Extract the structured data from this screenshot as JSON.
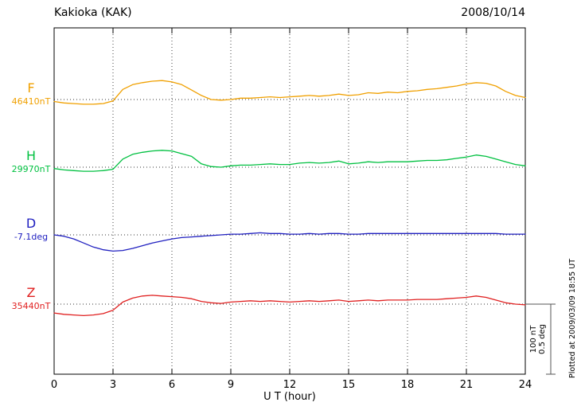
{
  "chart_data": {
    "type": "line",
    "title": "Kakioka (KAK)",
    "date": "2008/10/14",
    "xlabel": "U T (hour)",
    "xlim": [
      0,
      24
    ],
    "x_ticks": [
      0,
      3,
      6,
      9,
      12,
      15,
      18,
      21,
      24
    ],
    "x": [
      0,
      0.5,
      1,
      1.5,
      2,
      2.5,
      3,
      3.5,
      4,
      4.5,
      5,
      5.5,
      6,
      6.5,
      7,
      7.5,
      8,
      8.5,
      9,
      9.5,
      10,
      10.5,
      11,
      11.5,
      12,
      12.5,
      13,
      13.5,
      14,
      14.5,
      15,
      15.5,
      16,
      16.5,
      17,
      17.5,
      18,
      18.5,
      19,
      19.5,
      20,
      20.5,
      21,
      21.5,
      22,
      22.5,
      23,
      23.5,
      24
    ],
    "series": [
      {
        "name": "F",
        "baseline_label": "46410nT",
        "color": "#f0a000",
        "values": [
          -3,
          -5,
          -6,
          -7,
          -7,
          -6,
          -2,
          15,
          22,
          25,
          27,
          28,
          26,
          22,
          14,
          6,
          0,
          -1,
          0,
          2,
          2,
          3,
          4,
          3,
          4,
          5,
          6,
          5,
          6,
          8,
          6,
          7,
          10,
          9,
          11,
          10,
          12,
          13,
          15,
          16,
          18,
          20,
          23,
          25,
          24,
          20,
          12,
          6,
          3
        ]
      },
      {
        "name": "H",
        "baseline_label": "29970nT",
        "color": "#00c040",
        "values": [
          -2,
          -4,
          -5,
          -6,
          -6,
          -5,
          -3,
          12,
          19,
          22,
          24,
          25,
          24,
          20,
          16,
          5,
          1,
          0,
          2,
          3,
          3,
          4,
          5,
          4,
          4,
          6,
          7,
          6,
          7,
          9,
          5,
          6,
          8,
          7,
          8,
          8,
          8,
          9,
          10,
          10,
          11,
          13,
          15,
          18,
          16,
          12,
          8,
          4,
          2
        ]
      },
      {
        "name": "D",
        "baseline_label": "-7.1deg",
        "color": "#2020c0",
        "values": [
          0,
          -2,
          -6,
          -12,
          -18,
          -22,
          -24,
          -23,
          -20,
          -16,
          -12,
          -9,
          -6,
          -4,
          -3,
          -2,
          -1,
          0,
          1,
          1,
          2,
          3,
          2,
          2,
          1,
          1,
          2,
          1,
          2,
          2,
          1,
          1,
          2,
          2,
          2,
          2,
          2,
          2,
          2,
          2,
          2,
          2,
          2,
          2,
          2,
          2,
          1,
          1,
          1
        ]
      },
      {
        "name": "Z",
        "baseline_label": "35440nT",
        "color": "#e02020",
        "values": [
          -13,
          -15,
          -16,
          -17,
          -16,
          -14,
          -9,
          3,
          9,
          12,
          13,
          12,
          11,
          10,
          8,
          4,
          2,
          1,
          3,
          4,
          5,
          4,
          5,
          4,
          3,
          4,
          5,
          4,
          5,
          6,
          4,
          5,
          6,
          5,
          6,
          6,
          6,
          7,
          7,
          7,
          8,
          9,
          10,
          12,
          10,
          6,
          2,
          0,
          -1
        ]
      }
    ],
    "scale_bar": {
      "nt_label": "100 nT",
      "deg_label": "0.5 deg",
      "span_units": 100
    },
    "plotted_at": "Plotted at 2009/03/09 18:55 UT",
    "grid": "dotted vertical at 3h intervals, dotted horizontal baselines",
    "legend_position": "left baselines"
  }
}
